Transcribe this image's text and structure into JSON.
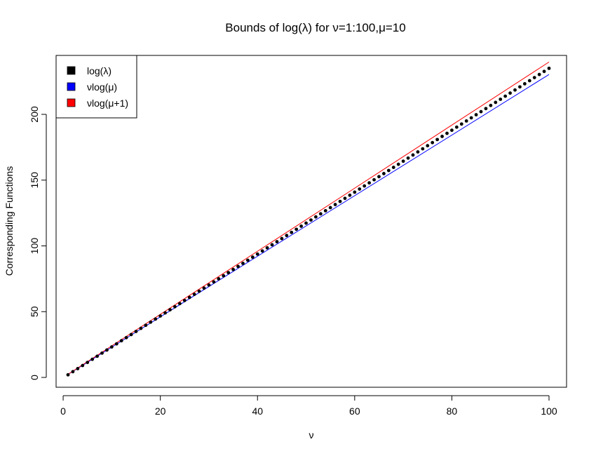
{
  "chart_data": {
    "type": "scatter",
    "title": "Bounds of log(λ) for ν=1:100,μ=10",
    "xlabel": "ν",
    "ylabel": "Corresponding Functions",
    "xlim": [
      1,
      100
    ],
    "ylim": [
      0,
      240
    ],
    "x_ticks": [
      0,
      20,
      40,
      60,
      80,
      100
    ],
    "y_ticks": [
      0,
      50,
      100,
      150,
      200
    ],
    "legend": {
      "position": "top-left",
      "entries": [
        {
          "label": "log(λ)",
          "color": "#000000"
        },
        {
          "label": "νlog(μ)",
          "color": "#0000ff"
        },
        {
          "label": "νlog(μ+1)",
          "color": "#ff0000"
        }
      ]
    },
    "series": [
      {
        "name": "log(λ)",
        "style": "points",
        "color": "#000000",
        "x_start": 1,
        "x_end": 100,
        "y_start": 2.0,
        "y_end": 235.0
      },
      {
        "name": "νlog(μ)",
        "style": "line",
        "color": "#0000ff",
        "x_start": 1,
        "x_end": 100,
        "y_start": 2.3,
        "y_end": 230.3
      },
      {
        "name": "νlog(μ+1)",
        "style": "line",
        "color": "#ff0000",
        "x_start": 1,
        "x_end": 100,
        "y_start": 2.4,
        "y_end": 239.8
      }
    ]
  }
}
